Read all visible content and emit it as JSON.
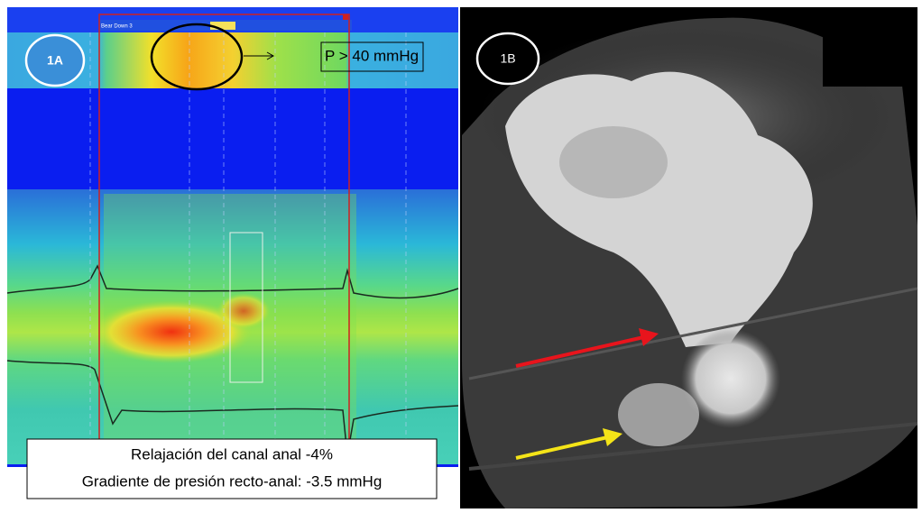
{
  "panel_a": {
    "label": "1A",
    "tab_label": "Bear Down 3",
    "pressure_note": "P > 40 mmHg",
    "caption_lines": [
      "Relajación del canal anal -4%",
      "Gradiente de presión recto-anal: -3.5 mmHg"
    ]
  },
  "panel_b": {
    "label": "1B"
  }
}
